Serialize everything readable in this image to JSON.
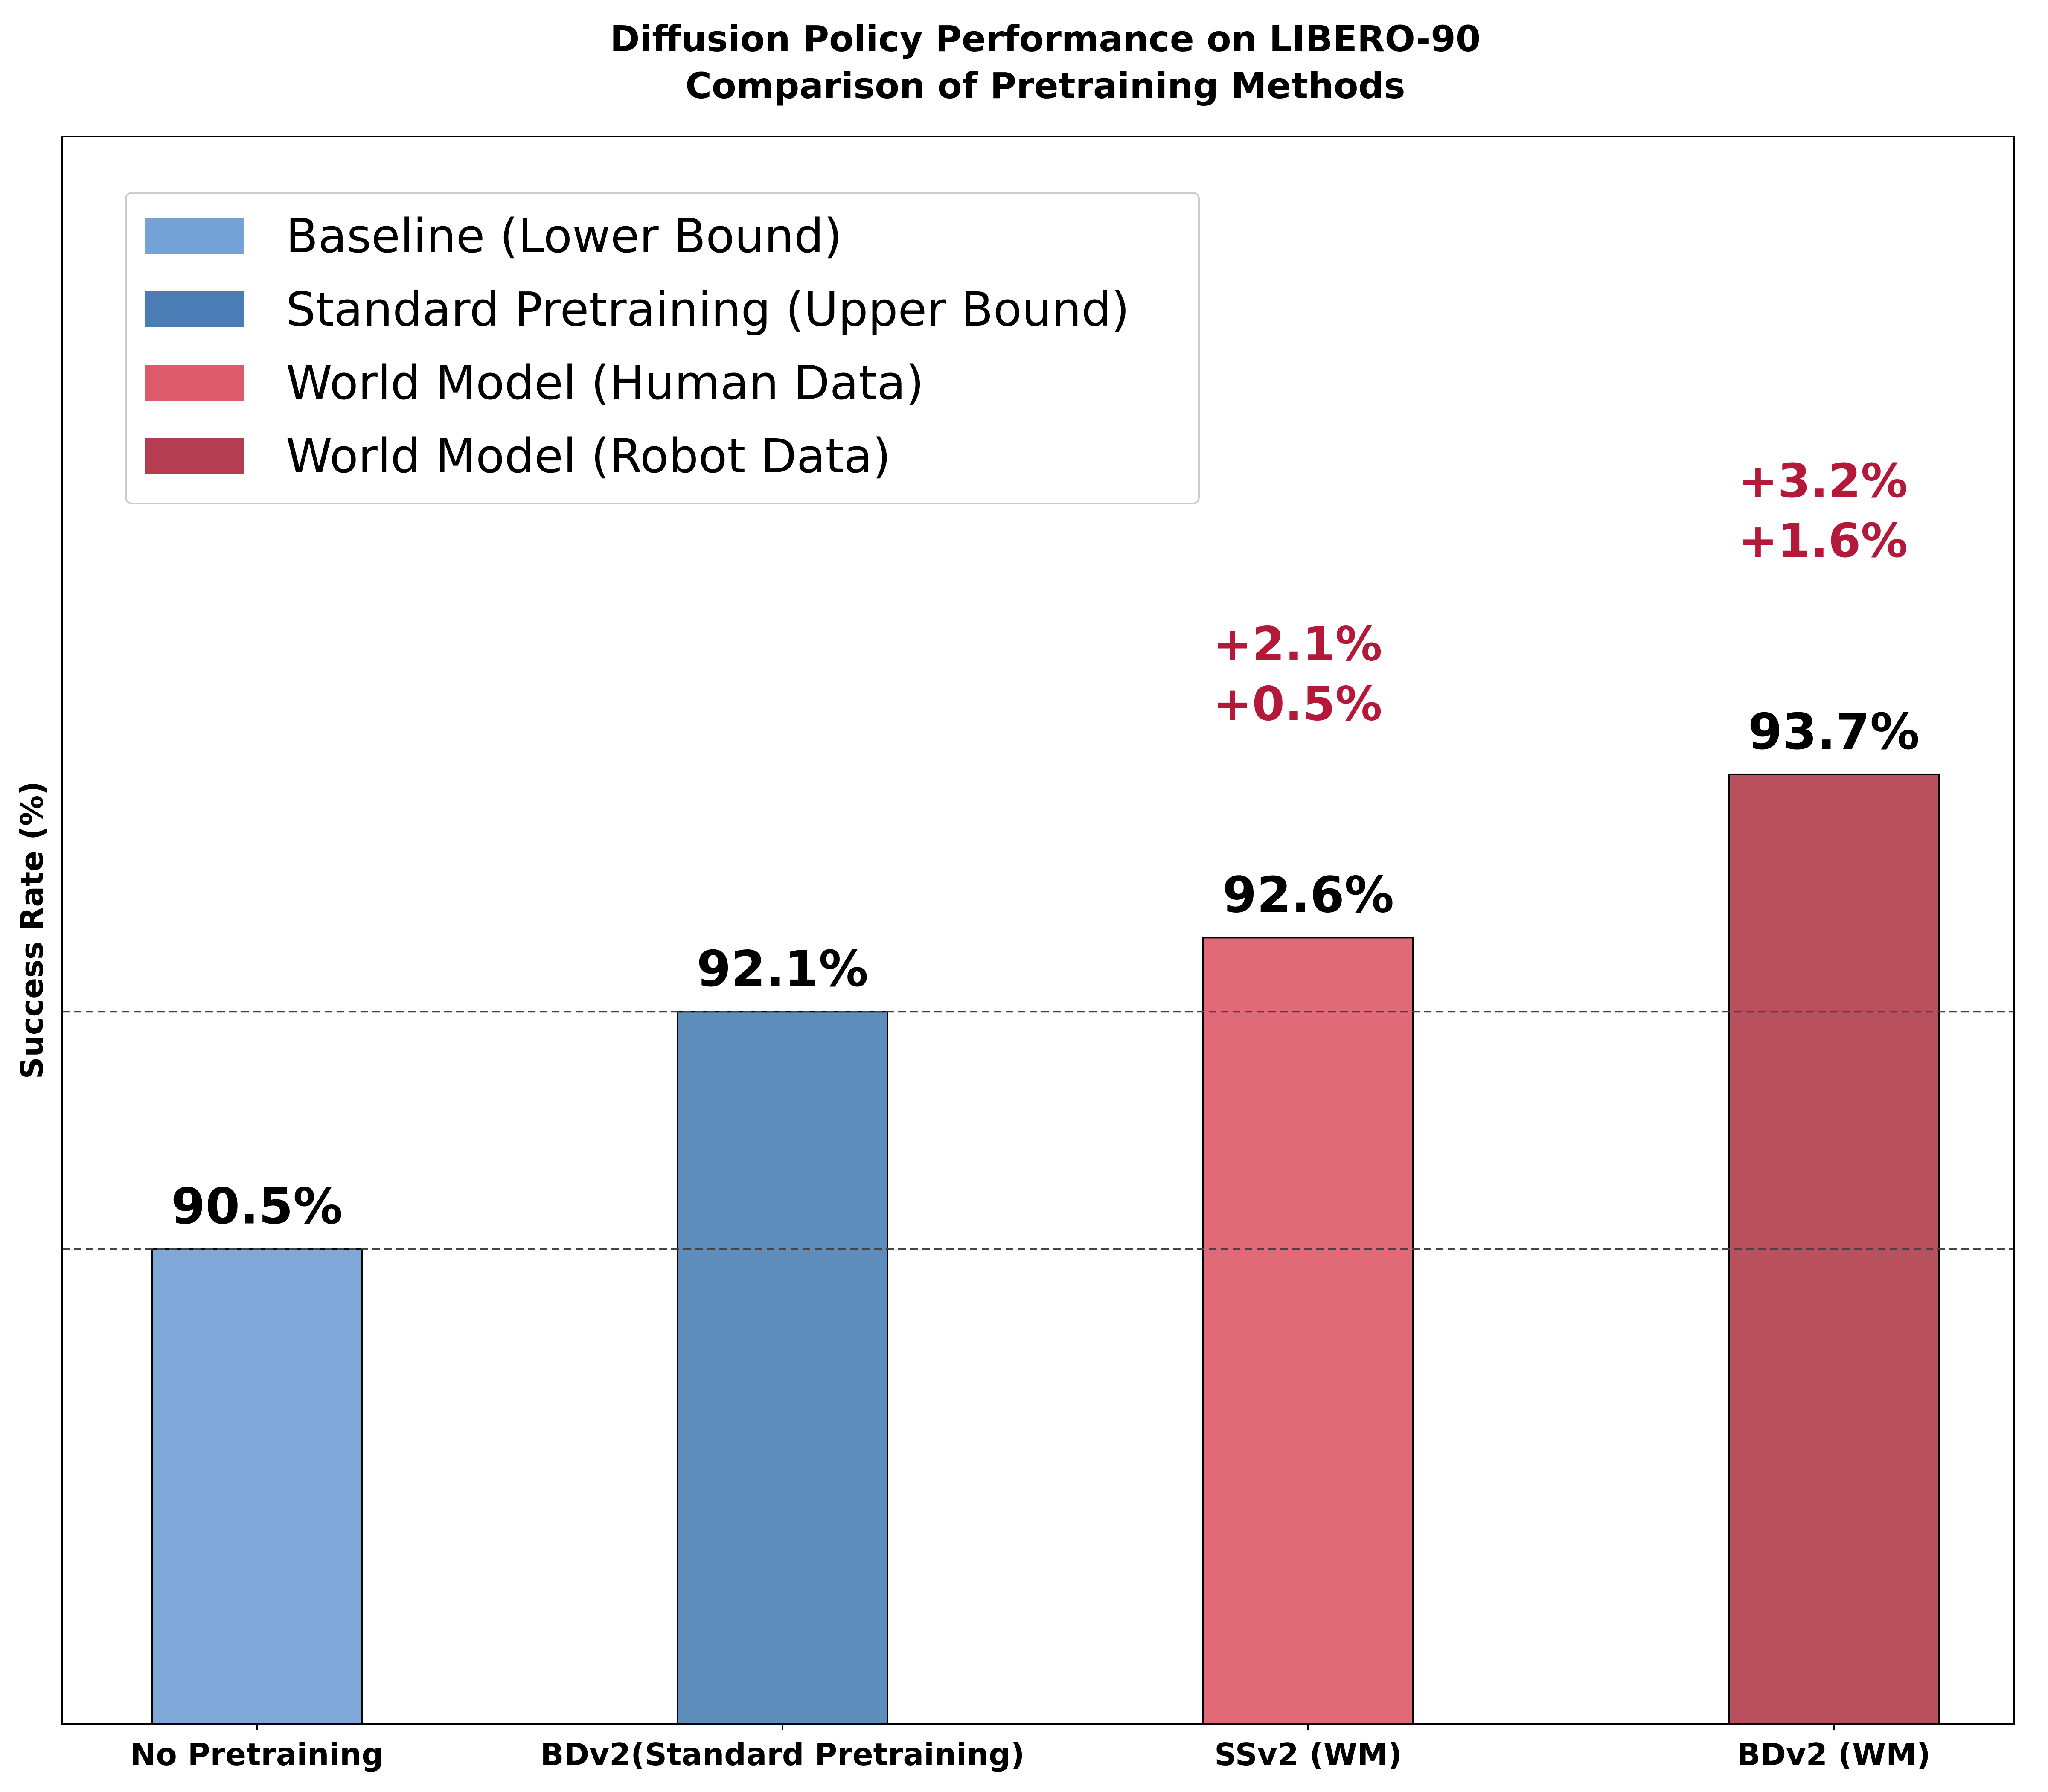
{
  "chart_data": {
    "type": "bar",
    "title_lines": [
      "Diffusion Policy Performance on LIBERO-90",
      "Comparison of Pretraining Methods"
    ],
    "xlabel": "",
    "ylabel": "Success Rate (%)",
    "ylim": [
      87.3,
      98.0
    ],
    "grid": false,
    "legend_position": "top-left",
    "categories": [
      "No Pretraining",
      "BDv2(Standard Pretraining)",
      "SSv2 (WM)",
      "BDv2 (WM)"
    ],
    "values": [
      90.5,
      92.1,
      92.6,
      93.7
    ],
    "value_labels": [
      "90.5%",
      "92.1%",
      "92.6%",
      "93.7%"
    ],
    "bar_colors": [
      "#7fa8d9",
      "#5e8cbb",
      "#e06a78",
      "#b9505e"
    ],
    "reference_lines": [
      {
        "value": 90.5
      },
      {
        "value": 92.1
      }
    ],
    "improvement_labels": [
      {
        "category_index": 2,
        "lines": [
          "+2.1%",
          "+0.5%"
        ]
      },
      {
        "category_index": 3,
        "lines": [
          "+3.2%",
          "+1.6%"
        ]
      }
    ],
    "legend": [
      {
        "label": "Baseline (Lower Bound)",
        "color": "#74a2d6"
      },
      {
        "label": "Standard Pretraining (Upper Bound)",
        "color": "#4a7db5"
      },
      {
        "label": "World Model (Human Data)",
        "color": "#dd5a6a"
      },
      {
        "label": "World Model (Robot Data)",
        "color": "#b43d52"
      }
    ],
    "colors": {
      "improvement_text": "#b5193a",
      "bar_edge": "#000000",
      "reference_line": "#444444"
    }
  }
}
